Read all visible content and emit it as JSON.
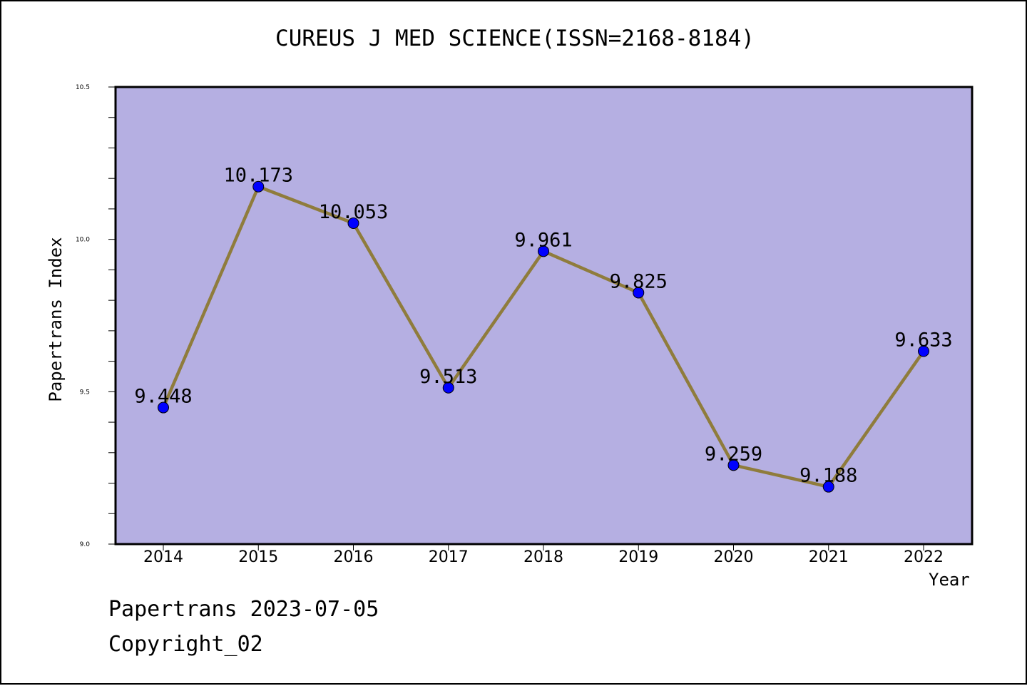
{
  "chart_data": {
    "type": "line",
    "title": "CUREUS J MED SCIENCE(ISSN=2168-8184)",
    "xlabel": "Year",
    "ylabel": "Papertrans Index",
    "categories": [
      "2014",
      "2015",
      "2016",
      "2017",
      "2018",
      "2019",
      "2020",
      "2021",
      "2022"
    ],
    "values": [
      9.448,
      10.173,
      10.053,
      9.513,
      9.961,
      9.825,
      9.259,
      9.188,
      9.633
    ],
    "data_labels": [
      "9.448",
      "10.173",
      "10.053",
      "9.513",
      "9.961",
      "9.825",
      "9.259",
      "9.188",
      "9.633"
    ],
    "ylim": [
      9.0,
      10.5
    ],
    "yticks": [
      "9.0",
      "9.5",
      "10.0",
      "10.5"
    ],
    "grid": false,
    "colors": {
      "plot_background": "#b5afe2",
      "line": "#8f7c3c",
      "marker": "#0000ff"
    }
  },
  "footer": {
    "line1": "Papertrans 2023-07-05",
    "line2": "Copyright_02"
  }
}
